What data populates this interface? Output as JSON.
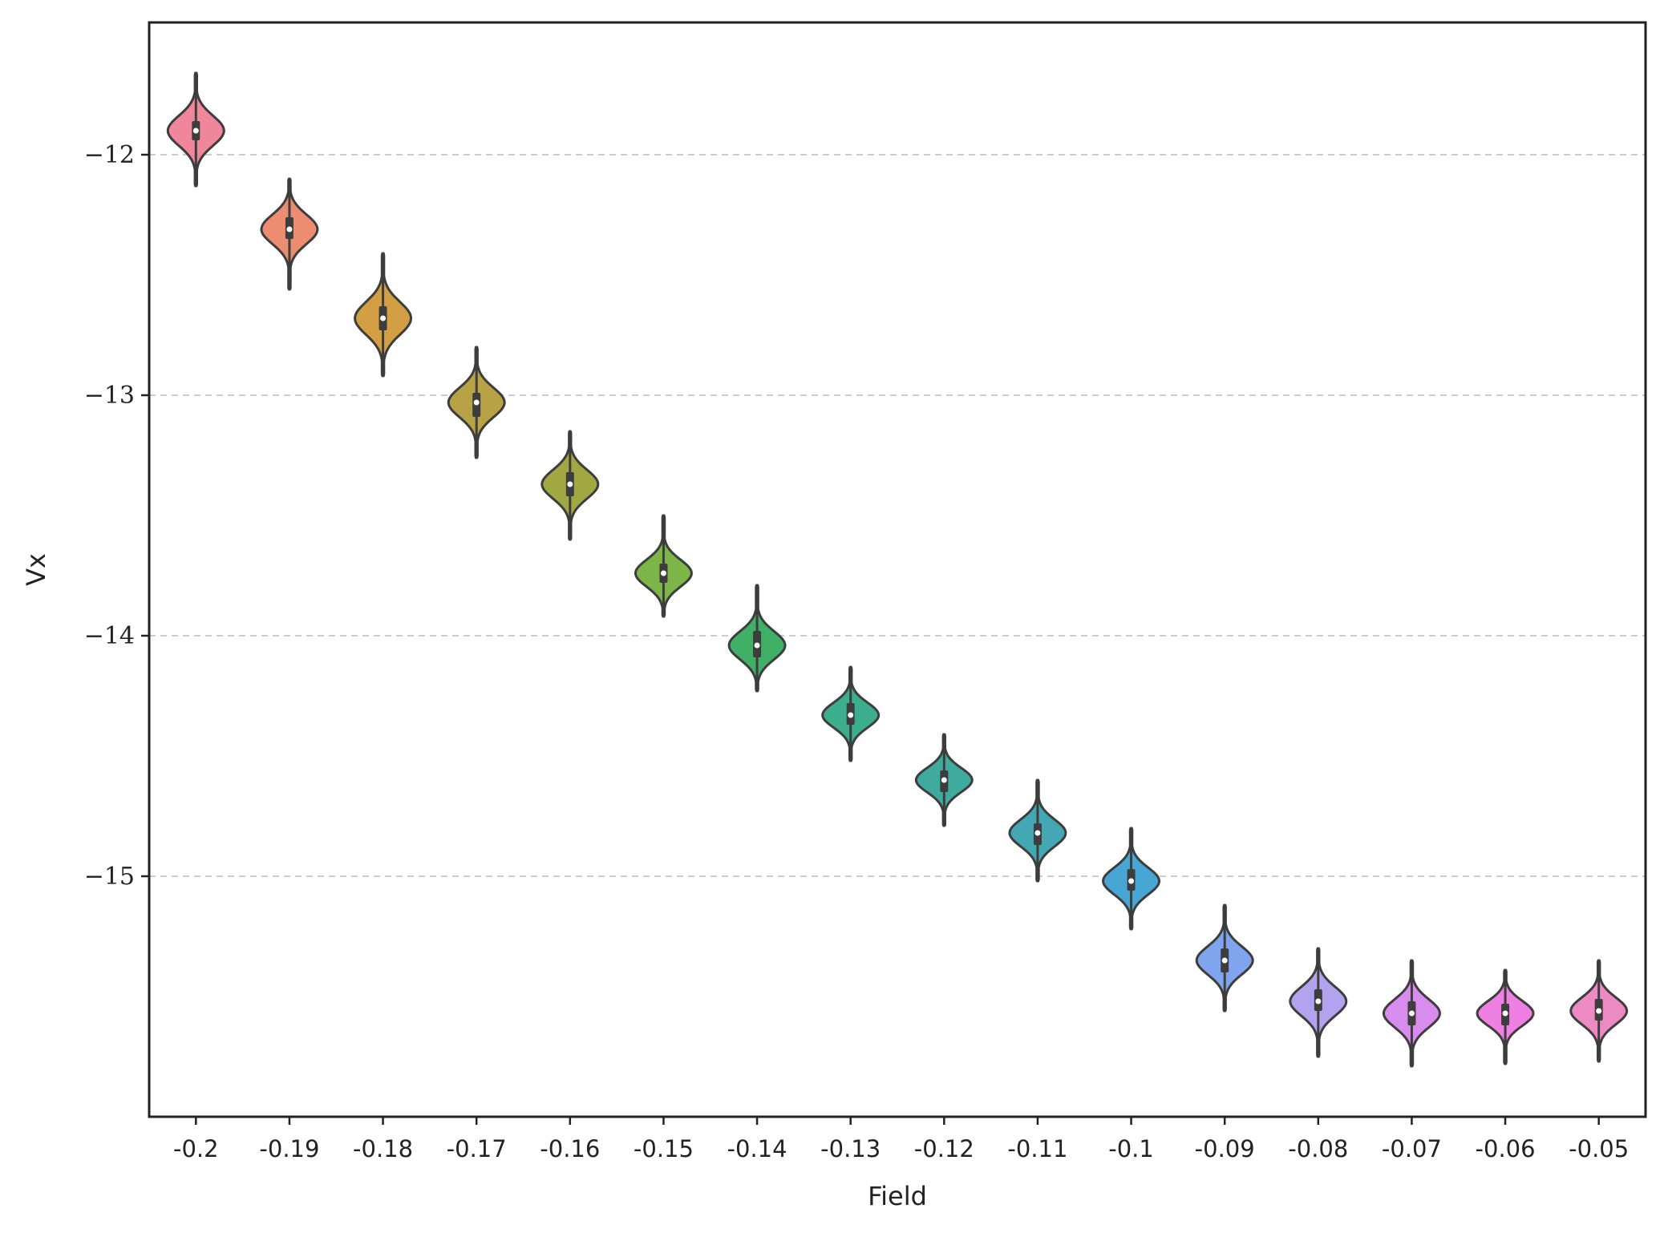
{
  "chart_data": {
    "type": "violin",
    "xlabel": "Field",
    "ylabel": "Vx",
    "categories": [
      "-0.2",
      "-0.19",
      "-0.18",
      "-0.17",
      "-0.16",
      "-0.15",
      "-0.14",
      "-0.13",
      "-0.12",
      "-0.11",
      "-0.1",
      "-0.09",
      "-0.08",
      "-0.07",
      "-0.06",
      "-0.05"
    ],
    "medians": [
      -11.9,
      -12.31,
      -12.68,
      -13.03,
      -13.37,
      -13.74,
      -14.04,
      -14.33,
      -14.6,
      -14.82,
      -15.02,
      -15.35,
      -15.52,
      -15.57,
      -15.57,
      -15.56
    ],
    "q1": [
      -11.94,
      -12.35,
      -12.73,
      -13.09,
      -13.42,
      -13.78,
      -14.09,
      -14.37,
      -14.65,
      -14.87,
      -15.06,
      -15.4,
      -15.56,
      -15.62,
      -15.62,
      -15.6
    ],
    "q3": [
      -11.86,
      -12.26,
      -12.63,
      -12.99,
      -13.32,
      -13.7,
      -13.98,
      -14.28,
      -14.56,
      -14.78,
      -14.97,
      -15.3,
      -15.47,
      -15.52,
      -15.53,
      -15.51
    ],
    "mins": [
      -12.13,
      -12.56,
      -12.92,
      -13.26,
      -13.6,
      -13.92,
      -14.23,
      -14.52,
      -14.79,
      -15.02,
      -15.22,
      -15.56,
      -15.75,
      -15.79,
      -15.78,
      -15.77
    ],
    "maxs": [
      -11.66,
      -12.1,
      -12.41,
      -12.8,
      -13.15,
      -13.5,
      -13.79,
      -14.13,
      -14.41,
      -14.6,
      -14.8,
      -15.12,
      -15.3,
      -15.35,
      -15.39,
      -15.35
    ],
    "ylim": [
      -16.0,
      -11.45
    ],
    "yticks": [
      -12,
      -13,
      -14,
      -15
    ],
    "ytick_labels": [
      "−12",
      "−13",
      "−14",
      "−15"
    ],
    "grid": {
      "y": true,
      "style": "dashed"
    },
    "colors": [
      "#f0869a",
      "#ec8c70",
      "#d39f45",
      "#b7a245",
      "#a1a842",
      "#7cb548",
      "#3fb066",
      "#3dae8d",
      "#3eab9e",
      "#43a8b3",
      "#48a6d5",
      "#80a4ee",
      "#b3a2ee",
      "#d88ced",
      "#ee80e3",
      "#ee8ac3"
    ],
    "outline_color": "#3d3d3d",
    "grid_color": "#cccccc"
  }
}
